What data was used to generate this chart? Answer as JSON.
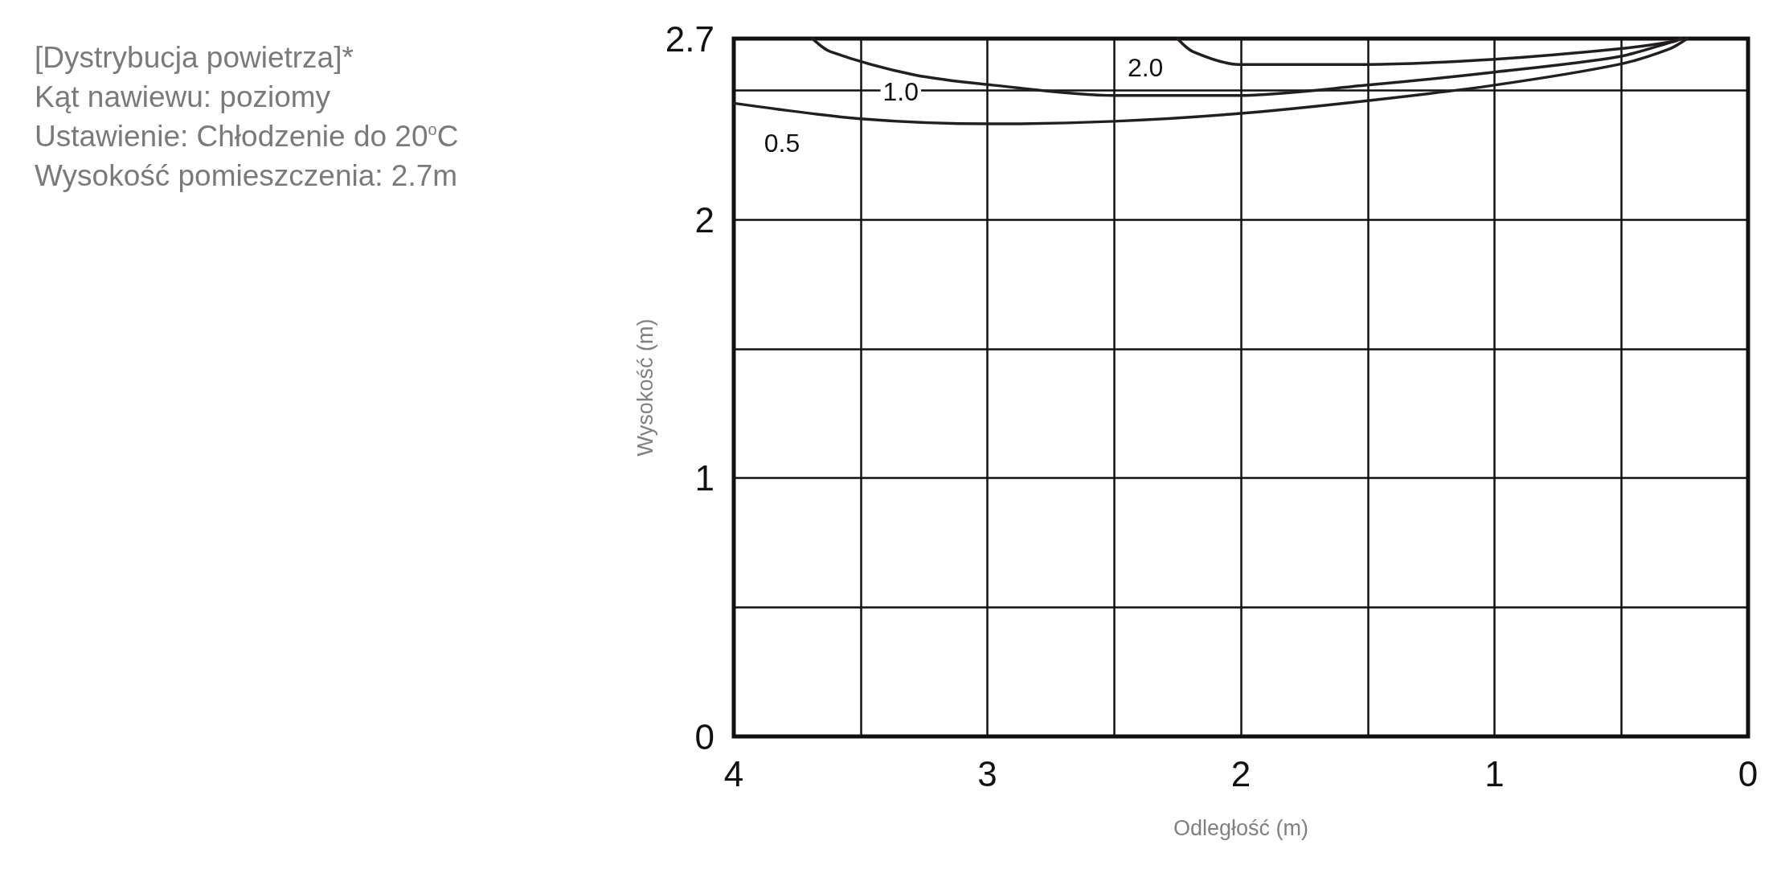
{
  "chart_data": {
    "type": "line",
    "xlabel": "Odległość (m)",
    "ylabel": "Wysokość (m)",
    "annotations": [
      "[Dystrybucja powietrza]*",
      "Kąt nawiewu: poziomy",
      "Ustawienie: Chłodzenie do 20$^{o}$C",
      "Wysokość pomieszczenia: 2.7m"
    ],
    "xlim": [
      4,
      0
    ],
    "xticks": [
      4,
      {
        "value": 3.5,
        "label": null
      },
      3,
      {
        "value": 2.5,
        "label": null
      },
      2,
      {
        "value": 1.5,
        "label": null
      },
      1,
      {
        "value": 0.5,
        "label": null
      },
      0
    ],
    "ylim": [
      0,
      2.7
    ],
    "yticks": [
      0,
      {
        "value": 0.5,
        "label": null
      },
      1,
      {
        "value": 1.5,
        "label": null
      },
      2,
      {
        "value": 2.5,
        "label": null
      },
      2.7
    ],
    "grid": true,
    "marker": "none",
    "line_style": "solid",
    "series": [
      {
        "name": "0.5",
        "color": "#231f20",
        "x": [
          4,
          3.5,
          2.98,
          2.5,
          2.01,
          1.5,
          1.0,
          0.51,
          0.31,
          0.24
        ],
        "values": [
          2.45,
          2.39,
          2.37,
          2.38,
          2.41,
          2.46,
          2.52,
          2.6,
          2.66,
          2.7
        ]
      },
      {
        "name": "1.0",
        "color": "#231f20",
        "x": [
          3.69,
          3.62,
          3.29,
          2.98,
          2.5,
          2.01,
          1.5,
          1.0,
          0.51,
          0.29,
          0.26
        ],
        "values": [
          2.7,
          2.65,
          2.56,
          2.52,
          2.48,
          2.48,
          2.52,
          2.57,
          2.63,
          2.69,
          2.7
        ]
      },
      {
        "name": "2.0",
        "color": "#231f20",
        "x": [
          2.25,
          2.19,
          2.01,
          1.5,
          1.0,
          0.51,
          0.29,
          0.27
        ],
        "values": [
          2.7,
          2.65,
          2.6,
          2.6,
          2.62,
          2.66,
          2.69,
          2.7
        ]
      }
    ]
  }
}
